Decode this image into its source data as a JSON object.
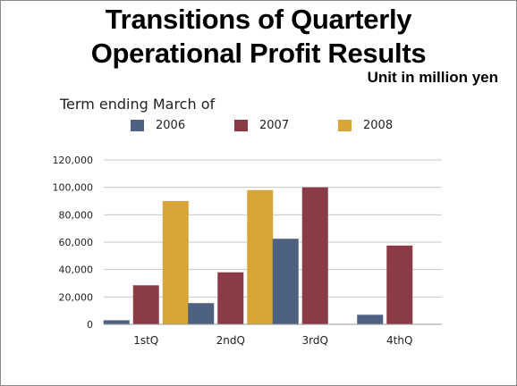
{
  "chart_data": {
    "type": "bar",
    "title_lines": [
      "Transitions of Quarterly",
      "Operational Profit Results"
    ],
    "unit_label": "Unit in million yen",
    "legend_title": "Term ending March of",
    "categories": [
      "1stQ",
      "2ndQ",
      "3rdQ",
      "4thQ"
    ],
    "series": [
      {
        "name": "2006",
        "color": "#4f6181",
        "values": [
          3000,
          15500,
          62500,
          7000
        ]
      },
      {
        "name": "2007",
        "color": "#8b3b46",
        "values": [
          28500,
          38000,
          100000,
          57500
        ]
      },
      {
        "name": "2008",
        "color": "#d6a737",
        "values": [
          90000,
          98000,
          null,
          null
        ]
      }
    ],
    "y_ticks": [
      "0",
      "20,000",
      "40,000",
      "60,000",
      "80,000",
      "100,000",
      "120,000"
    ],
    "ylim": [
      0,
      120000
    ],
    "grid": true,
    "legend_position": "top"
  }
}
